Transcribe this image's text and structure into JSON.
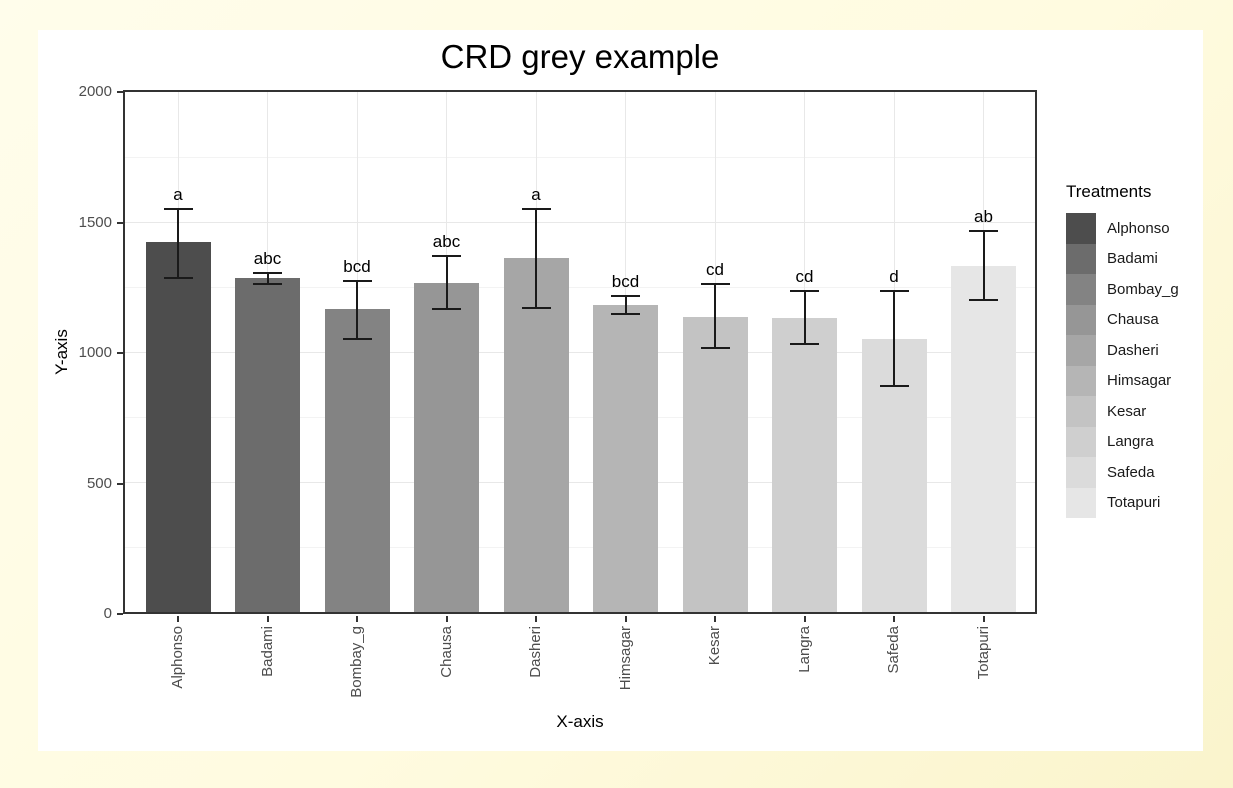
{
  "page": {
    "background_top_left": "#FFFDEB",
    "background_bottom_right": "#FAF4CC",
    "card_color": "#FFFFFF"
  },
  "chart_data": {
    "type": "bar",
    "title": "CRD grey example",
    "xlabel": "X-axis",
    "ylabel": "Y-axis",
    "legend_title": "Treatments",
    "legend_position": "right",
    "ylim": [
      0,
      2000
    ],
    "yticks": [
      0,
      500,
      1000,
      1500,
      2000
    ],
    "yticks_minor": [
      250,
      750,
      1250,
      1750
    ],
    "grid": "horizontal major+minor, vertical major at category centers",
    "categories": [
      "Alphonso",
      "Badami",
      "Bombay_g",
      "Chausa",
      "Dasheri",
      "Himsagar",
      "Kesar",
      "Langra",
      "Safeda",
      "Totapuri"
    ],
    "values": [
      1425,
      1285,
      1165,
      1265,
      1360,
      1180,
      1135,
      1130,
      1050,
      1330
    ],
    "error_low": [
      1285,
      1260,
      1050,
      1165,
      1170,
      1145,
      1015,
      1030,
      870,
      1200
    ],
    "error_high": [
      1550,
      1305,
      1275,
      1370,
      1550,
      1215,
      1260,
      1235,
      1235,
      1465
    ],
    "sig_letters": [
      "a",
      "abc",
      "bcd",
      "abc",
      "a",
      "bcd",
      "cd",
      "cd",
      "d",
      "ab"
    ],
    "bar_colors": [
      "#4D4D4D",
      "#6C6C6C",
      "#838383",
      "#969696",
      "#A6A6A6",
      "#B5B5B5",
      "#C3C3C3",
      "#CFCFCF",
      "#DBDBDB",
      "#E6E6E6"
    ],
    "colors": {
      "panel_border": "#333333",
      "grid_major": "#E8E8E8",
      "grid_minor": "#F3F3F3",
      "axis_text": "#4D4D4D",
      "title_text": "#000000",
      "error_bar": "#1A1A1A"
    }
  }
}
